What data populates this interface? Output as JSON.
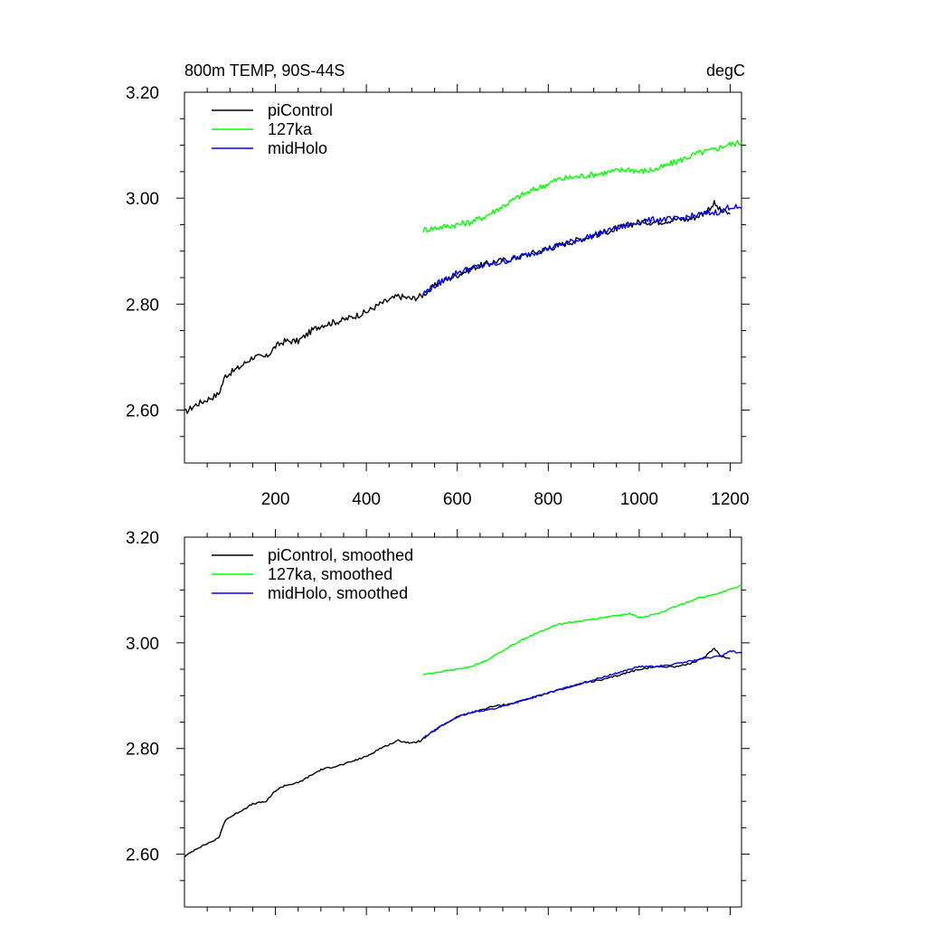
{
  "chart_data": [
    {
      "type": "line",
      "title": "800m TEMP, 90S-44S",
      "units": "degC",
      "xlabel": "",
      "ylabel": "",
      "xlim": [
        0,
        1225
      ],
      "ylim": [
        2.5,
        3.2
      ],
      "xticks": [
        200,
        400,
        600,
        800,
        1000,
        1200
      ],
      "xtick_labels": [
        "200",
        "400",
        "600",
        "800",
        "1000",
        "1200"
      ],
      "yticks": [
        2.6,
        2.8,
        3.0,
        3.2
      ],
      "ytick_labels": [
        "2.60",
        "2.80",
        "3.00",
        "3.20"
      ],
      "legend_position": "top-left",
      "grid": false,
      "series": [
        {
          "name": "piControl",
          "color": "#000000",
          "points": [
            [
              0,
              2.595
            ],
            [
              25,
              2.61
            ],
            [
              50,
              2.62
            ],
            [
              75,
              2.63
            ],
            [
              90,
              2.665
            ],
            [
              120,
              2.68
            ],
            [
              150,
              2.7
            ],
            [
              180,
              2.7
            ],
            [
              200,
              2.72
            ],
            [
              220,
              2.73
            ],
            [
              250,
              2.73
            ],
            [
              280,
              2.75
            ],
            [
              300,
              2.76
            ],
            [
              350,
              2.77
            ],
            [
              400,
              2.785
            ],
            [
              430,
              2.8
            ],
            [
              470,
              2.815
            ],
            [
              500,
              2.81
            ],
            [
              520,
              2.815
            ],
            [
              560,
              2.84
            ],
            [
              600,
              2.855
            ],
            [
              640,
              2.87
            ],
            [
              680,
              2.88
            ],
            [
              720,
              2.885
            ],
            [
              760,
              2.895
            ],
            [
              800,
              2.905
            ],
            [
              840,
              2.915
            ],
            [
              880,
              2.925
            ],
            [
              920,
              2.935
            ],
            [
              960,
              2.945
            ],
            [
              1000,
              2.955
            ],
            [
              1040,
              2.955
            ],
            [
              1080,
              2.96
            ],
            [
              1110,
              2.96
            ],
            [
              1140,
              2.97
            ],
            [
              1165,
              2.99
            ],
            [
              1180,
              2.975
            ],
            [
              1200,
              2.97
            ]
          ]
        },
        {
          "name": "127ka",
          "color": "#00ff00",
          "points": [
            [
              525,
              2.94
            ],
            [
              560,
              2.945
            ],
            [
              600,
              2.95
            ],
            [
              630,
              2.955
            ],
            [
              660,
              2.965
            ],
            [
              700,
              2.985
            ],
            [
              740,
              3.005
            ],
            [
              780,
              3.02
            ],
            [
              820,
              3.035
            ],
            [
              860,
              3.04
            ],
            [
              900,
              3.045
            ],
            [
              940,
              3.05
            ],
            [
              980,
              3.055
            ],
            [
              1000,
              3.05
            ],
            [
              1040,
              3.055
            ],
            [
              1070,
              3.065
            ],
            [
              1100,
              3.075
            ],
            [
              1130,
              3.085
            ],
            [
              1160,
              3.09
            ],
            [
              1190,
              3.1
            ],
            [
              1225,
              3.105
            ]
          ]
        },
        {
          "name": "midHolo",
          "color": "#0000ff",
          "points": [
            [
              525,
              2.82
            ],
            [
              560,
              2.84
            ],
            [
              600,
              2.86
            ],
            [
              640,
              2.87
            ],
            [
              680,
              2.875
            ],
            [
              720,
              2.885
            ],
            [
              760,
              2.895
            ],
            [
              800,
              2.905
            ],
            [
              840,
              2.915
            ],
            [
              880,
              2.925
            ],
            [
              920,
              2.935
            ],
            [
              960,
              2.945
            ],
            [
              1000,
              2.955
            ],
            [
              1040,
              2.96
            ],
            [
              1080,
              2.96
            ],
            [
              1110,
              2.965
            ],
            [
              1140,
              2.97
            ],
            [
              1180,
              2.975
            ],
            [
              1200,
              2.985
            ],
            [
              1225,
              2.98
            ]
          ]
        }
      ]
    },
    {
      "type": "line",
      "title": "",
      "units": "",
      "xlabel": "",
      "ylabel": "",
      "xlim": [
        0,
        1225
      ],
      "ylim": [
        2.5,
        3.2
      ],
      "xticks": [
        200,
        400,
        600,
        800,
        1000,
        1200
      ],
      "xtick_labels": [],
      "yticks": [
        2.6,
        2.8,
        3.0,
        3.2
      ],
      "ytick_labels": [
        "2.60",
        "2.80",
        "3.00",
        "3.20"
      ],
      "legend_position": "top-left",
      "grid": false,
      "series": [
        {
          "name": "piControl, smoothed",
          "color": "#000000",
          "points": [
            [
              0,
              2.595
            ],
            [
              25,
              2.61
            ],
            [
              50,
              2.62
            ],
            [
              75,
              2.63
            ],
            [
              90,
              2.665
            ],
            [
              120,
              2.68
            ],
            [
              150,
              2.695
            ],
            [
              180,
              2.7
            ],
            [
              200,
              2.72
            ],
            [
              220,
              2.73
            ],
            [
              250,
              2.735
            ],
            [
              280,
              2.75
            ],
            [
              300,
              2.76
            ],
            [
              350,
              2.77
            ],
            [
              400,
              2.785
            ],
            [
              430,
              2.8
            ],
            [
              470,
              2.815
            ],
            [
              500,
              2.81
            ],
            [
              520,
              2.815
            ],
            [
              560,
              2.84
            ],
            [
              600,
              2.86
            ],
            [
              640,
              2.87
            ],
            [
              680,
              2.88
            ],
            [
              720,
              2.885
            ],
            [
              760,
              2.895
            ],
            [
              800,
              2.905
            ],
            [
              840,
              2.915
            ],
            [
              880,
              2.925
            ],
            [
              920,
              2.93
            ],
            [
              960,
              2.94
            ],
            [
              1000,
              2.95
            ],
            [
              1040,
              2.955
            ],
            [
              1080,
              2.955
            ],
            [
              1110,
              2.96
            ],
            [
              1140,
              2.97
            ],
            [
              1165,
              2.99
            ],
            [
              1180,
              2.975
            ],
            [
              1200,
              2.97
            ]
          ]
        },
        {
          "name": "127ka, smoothed",
          "color": "#00ff00",
          "points": [
            [
              525,
              2.94
            ],
            [
              560,
              2.945
            ],
            [
              600,
              2.95
            ],
            [
              630,
              2.955
            ],
            [
              660,
              2.965
            ],
            [
              700,
              2.985
            ],
            [
              740,
              3.005
            ],
            [
              780,
              3.02
            ],
            [
              820,
              3.035
            ],
            [
              860,
              3.04
            ],
            [
              900,
              3.045
            ],
            [
              940,
              3.05
            ],
            [
              980,
              3.055
            ],
            [
              1000,
              3.048
            ],
            [
              1040,
              3.055
            ],
            [
              1070,
              3.065
            ],
            [
              1100,
              3.075
            ],
            [
              1130,
              3.085
            ],
            [
              1160,
              3.09
            ],
            [
              1190,
              3.098
            ],
            [
              1225,
              3.108
            ]
          ]
        },
        {
          "name": "midHolo, smoothed",
          "color": "#0000ff",
          "points": [
            [
              525,
              2.82
            ],
            [
              560,
              2.84
            ],
            [
              600,
              2.86
            ],
            [
              640,
              2.87
            ],
            [
              680,
              2.875
            ],
            [
              720,
              2.885
            ],
            [
              760,
              2.895
            ],
            [
              800,
              2.905
            ],
            [
              840,
              2.915
            ],
            [
              880,
              2.925
            ],
            [
              920,
              2.935
            ],
            [
              960,
              2.945
            ],
            [
              1000,
              2.955
            ],
            [
              1040,
              2.955
            ],
            [
              1080,
              2.96
            ],
            [
              1110,
              2.965
            ],
            [
              1140,
              2.97
            ],
            [
              1180,
              2.975
            ],
            [
              1200,
              2.985
            ],
            [
              1225,
              2.98
            ]
          ]
        }
      ]
    }
  ]
}
